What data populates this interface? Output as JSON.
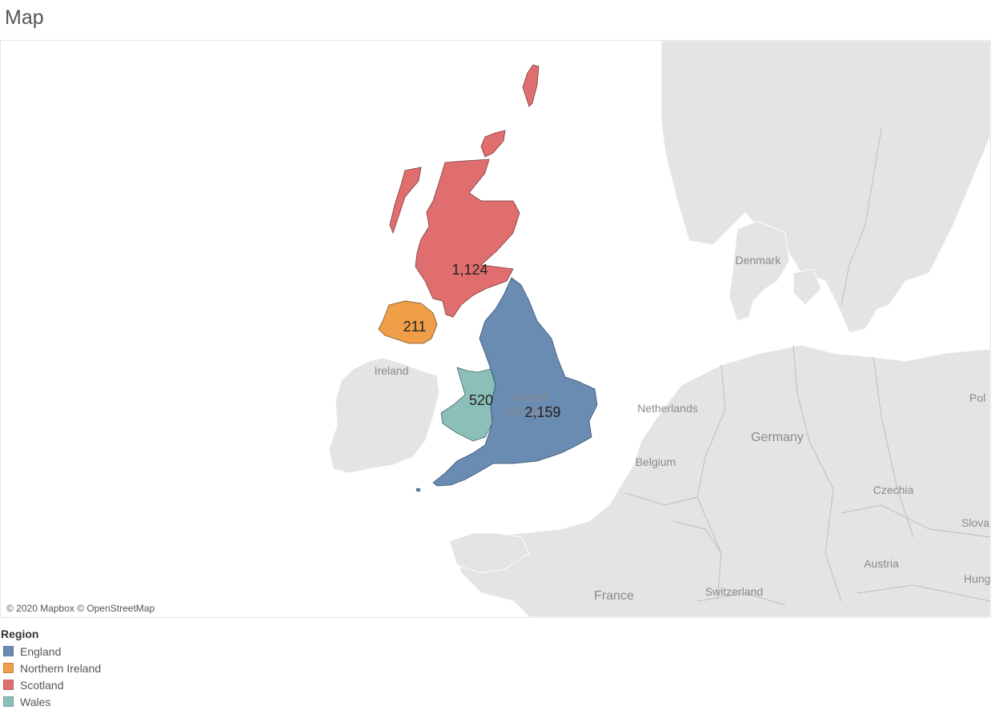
{
  "title": "Map",
  "attribution": "© 2020 Mapbox © OpenStreetMap",
  "legend": {
    "title": "Region",
    "items": [
      {
        "label": "England",
        "color": "#6a8cb3"
      },
      {
        "label": "Northern Ireland",
        "color": "#f09f48"
      },
      {
        "label": "Scotland",
        "color": "#e06e6e"
      },
      {
        "label": "Wales",
        "color": "#8dbfba"
      }
    ]
  },
  "regions": {
    "england": {
      "name": "England",
      "value": "2,159",
      "color": "#6a8cb3"
    },
    "northern_ireland": {
      "name": "Northern Ireland",
      "value": "211",
      "color": "#f09f48"
    },
    "scotland": {
      "name": "Scotland",
      "value": "1,124",
      "color": "#e06e6e"
    },
    "wales": {
      "name": "Wales",
      "value": "520",
      "color": "#8dbfba"
    }
  },
  "basemap_labels": {
    "denmark": "Denmark",
    "ireland": "Ireland",
    "united_kingdom_1": "United",
    "united_kingdom_2": "Kingdom",
    "netherlands": "Netherlands",
    "germany": "Germany",
    "belgium": "Belgium",
    "czechia": "Czechia",
    "poland": "Pol",
    "slovakia": "Slova",
    "austria": "Austria",
    "hungary": "Hung",
    "switzerland": "Switzerland",
    "france": "France"
  },
  "colors": {
    "land": "#e4e4e4",
    "land_border": "#ffffff",
    "water": "#ffffff"
  }
}
